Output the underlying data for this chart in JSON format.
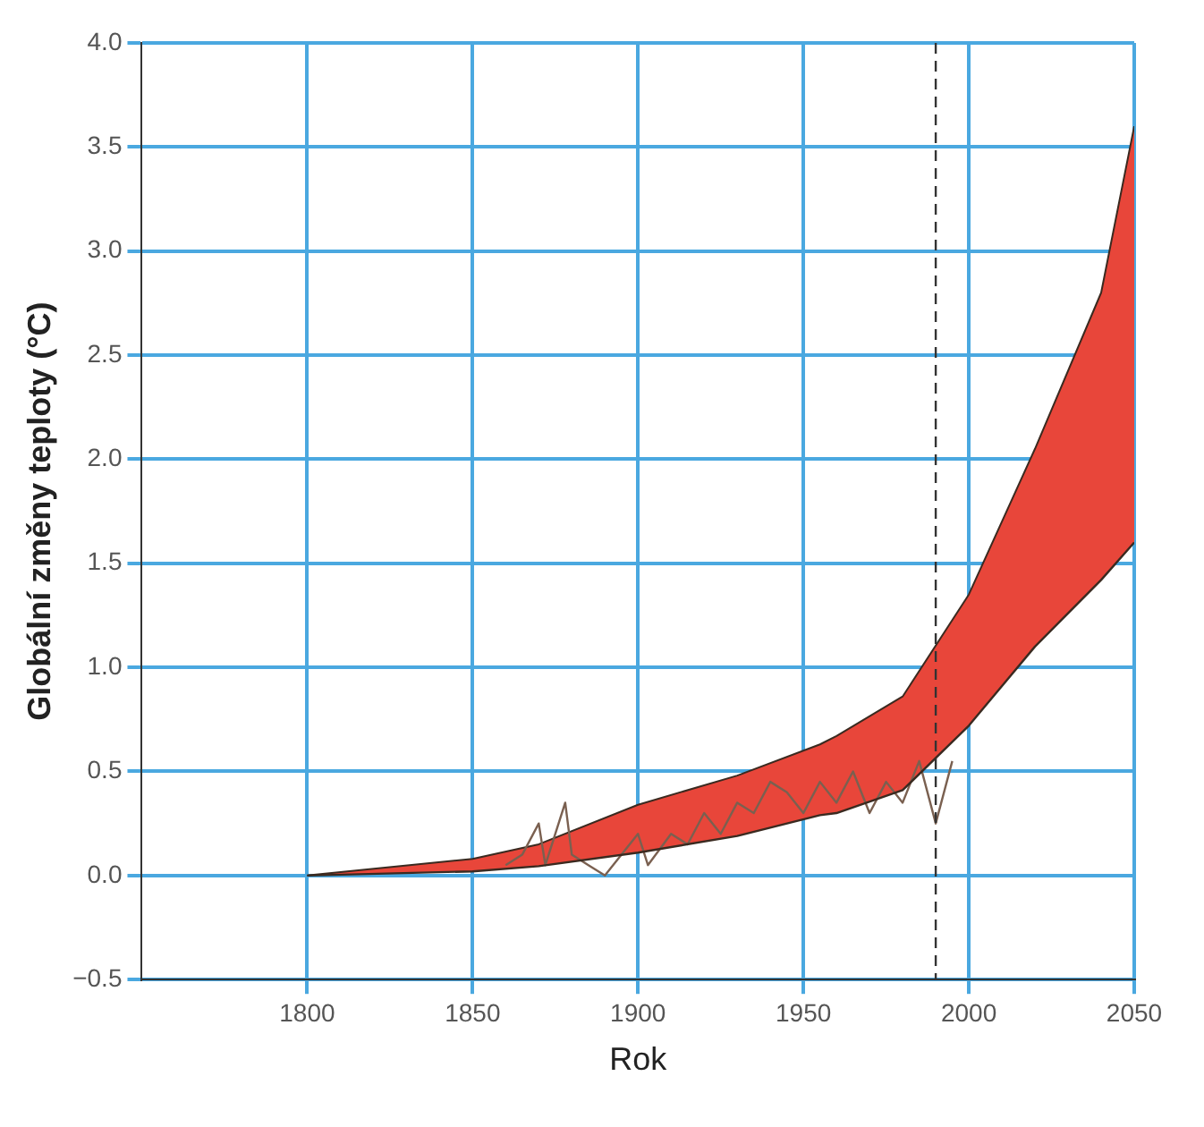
{
  "chart_data": {
    "type": "line",
    "xlabel": "Rok",
    "ylabel": "Globální změny teploty (°C)",
    "xlim": [
      1750,
      2050
    ],
    "xticks": [
      1800,
      1850,
      1900,
      1950,
      2000,
      2050
    ],
    "ylim": [
      -0.5,
      4
    ],
    "yticks": [
      {
        "value": -0.5,
        "label": "−0.5"
      },
      {
        "value": 0,
        "label": "0.0"
      },
      0.5,
      {
        "value": 1,
        "label": "1.0"
      },
      1.5,
      {
        "value": 2,
        "label": "2.0"
      },
      2.5,
      {
        "value": 3,
        "label": "3.0"
      },
      3.5,
      {
        "value": 4,
        "label": "4.0"
      }
    ],
    "grid": true,
    "legend": false,
    "marker": "none",
    "line_style": "solid",
    "series": [
      {
        "type": "line",
        "color": "#3a2a20",
        "x": [
          1800,
          1850,
          1870,
          1900,
          1930,
          1955,
          1960,
          1980,
          2000,
          2020,
          2040,
          2050
        ],
        "values": [
          0,
          0.02,
          0.045,
          0.11,
          0.19,
          0.29,
          0.3,
          0.41,
          0.72,
          1.1,
          1.42,
          1.6
        ]
      },
      {
        "type": "area",
        "color": "#e8463a",
        "x": [
          1800,
          1850,
          1870,
          1900,
          1930,
          1955,
          1960,
          1980,
          2000,
          2020,
          2040,
          2050
        ],
        "values": [
          0,
          0.08,
          0.15,
          0.34,
          0.48,
          0.63,
          0.67,
          0.86,
          1.35,
          2.05,
          2.8,
          3.6
        ]
      },
      {
        "type": "line",
        "color": "#7a6050",
        "x": [
          1860,
          1865,
          1870,
          1872,
          1878,
          1880,
          1885,
          1890,
          1895,
          1900,
          1903,
          1910,
          1915,
          1920,
          1925,
          1930,
          1935,
          1940,
          1945,
          1950,
          1955,
          1960,
          1965,
          1970,
          1975,
          1980,
          1985,
          1990,
          1995
        ],
        "values": [
          0.05,
          0.1,
          0.25,
          0.05,
          0.35,
          0.1,
          0.05,
          0,
          0.1,
          0.2,
          0.05,
          0.2,
          0.15,
          0.3,
          0.2,
          0.35,
          0.3,
          0.45,
          0.4,
          0.3,
          0.45,
          0.35,
          0.5,
          0.3,
          0.45,
          0.35,
          0.55,
          0.25,
          0.55
        ]
      }
    ],
    "ref_lines": [
      {
        "axis": "x",
        "value": 1990,
        "color": "#333333",
        "line_style": "dashed"
      }
    ]
  }
}
